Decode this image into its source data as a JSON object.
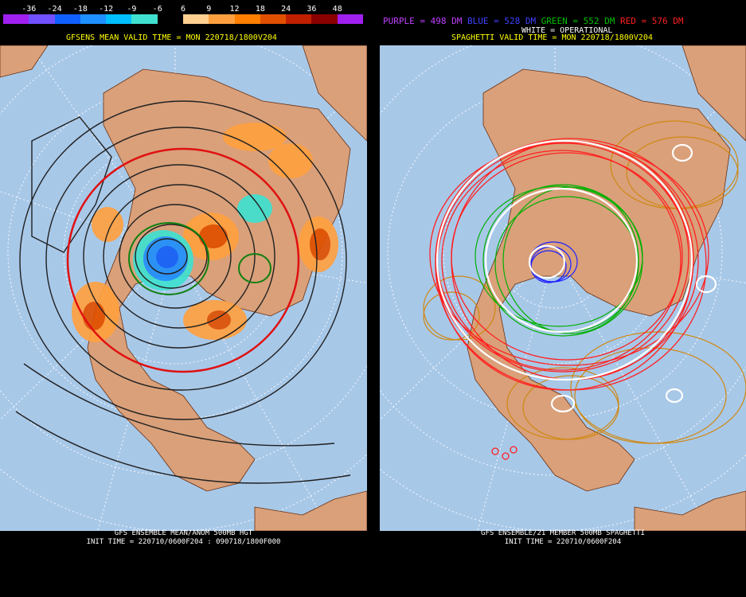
{
  "left": {
    "legend_ticks": [
      "-36",
      "-24",
      "-18",
      "-12",
      "-9",
      "-6",
      "6",
      "9",
      "12",
      "18",
      "24",
      "36",
      "48"
    ],
    "legend_colors": [
      "#a020f0",
      "#7050ff",
      "#1060ff",
      "#1e90ff",
      "#00bfff",
      "#40e0d0",
      "#000000",
      "#ffd090",
      "#ffa040",
      "#ff7f00",
      "#e05000",
      "#c02000",
      "#8b0000",
      "#a020f0"
    ],
    "header": "GFSENS MEAN VALID TIME = MON 220718/1800V204",
    "footer_line1": "GFS ENSEMBLE MEAN/ANOM 500MB HGT",
    "footer_line2": "INIT TIME = 220710/0600F204 : 090718/1800F000"
  },
  "right": {
    "key": {
      "purple": "PURPLE = 498 DM",
      "blue": "BLUE = 528 DM",
      "green": "GREEN = 552 DM",
      "red": "RED = 576 DM"
    },
    "white_label": "WHITE = OPERATIONAL",
    "header": "SPAGHETTI VALID TIME = MON 220718/1800V204",
    "footer_line1": "GFS ENSEMBLE/21 MEMBER 500MB SPAGHETTI",
    "footer_line2": "INIT TIME = 220710/0600F204"
  },
  "colors": {
    "ocean": "#a8c8e8",
    "land": "#d9a07a",
    "purple": "#c040ff",
    "blue": "#4040ff",
    "green": "#00c000",
    "red": "#ff2020",
    "gold": "#d08810"
  }
}
